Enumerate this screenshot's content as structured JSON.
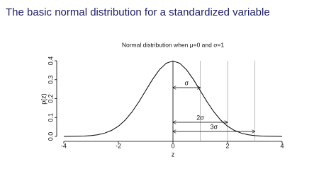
{
  "slide_title": "The basic normal distribution for a standardized variable",
  "chart_data": {
    "type": "line",
    "title": "Normal distribution when μ=0 and σ=1",
    "x_label": "z",
    "y_label": "p(z)",
    "x": [
      -4,
      -3.75,
      -3.5,
      -3.25,
      -3,
      -2.75,
      -2.5,
      -2.25,
      -2,
      -1.75,
      -1.5,
      -1.25,
      -1,
      -0.75,
      -0.5,
      -0.25,
      0,
      0.25,
      0.5,
      0.75,
      1,
      1.25,
      1.5,
      1.75,
      2,
      2.25,
      2.5,
      2.75,
      3,
      3.25,
      3.5,
      3.75,
      4
    ],
    "series": [
      {
        "name": "p(z)",
        "color": "#000000",
        "values": [
          0.0001,
          0.0004,
          0.0009,
          0.002,
          0.0044,
          0.0091,
          0.0175,
          0.0317,
          0.054,
          0.0863,
          0.1295,
          0.1826,
          0.242,
          0.3011,
          0.3521,
          0.3867,
          0.3989,
          0.3867,
          0.3521,
          0.3011,
          0.242,
          0.1826,
          0.1295,
          0.0863,
          0.054,
          0.0317,
          0.0175,
          0.0091,
          0.0044,
          0.002,
          0.0009,
          0.0004,
          0.0001
        ]
      }
    ],
    "xlim": [
      -4,
      4
    ],
    "xticks": [
      -4,
      -2,
      0,
      2,
      4
    ],
    "ylim": [
      0,
      0.4
    ],
    "yticks": [
      {
        "value": 0,
        "label": "0.0"
      },
      0.1,
      0.2,
      0.3,
      0.4
    ],
    "annotations": [
      {
        "text": "σ",
        "x": 1
      },
      {
        "text": "2σ",
        "x": 2
      },
      {
        "text": "3σ",
        "x": 3
      }
    ]
  }
}
